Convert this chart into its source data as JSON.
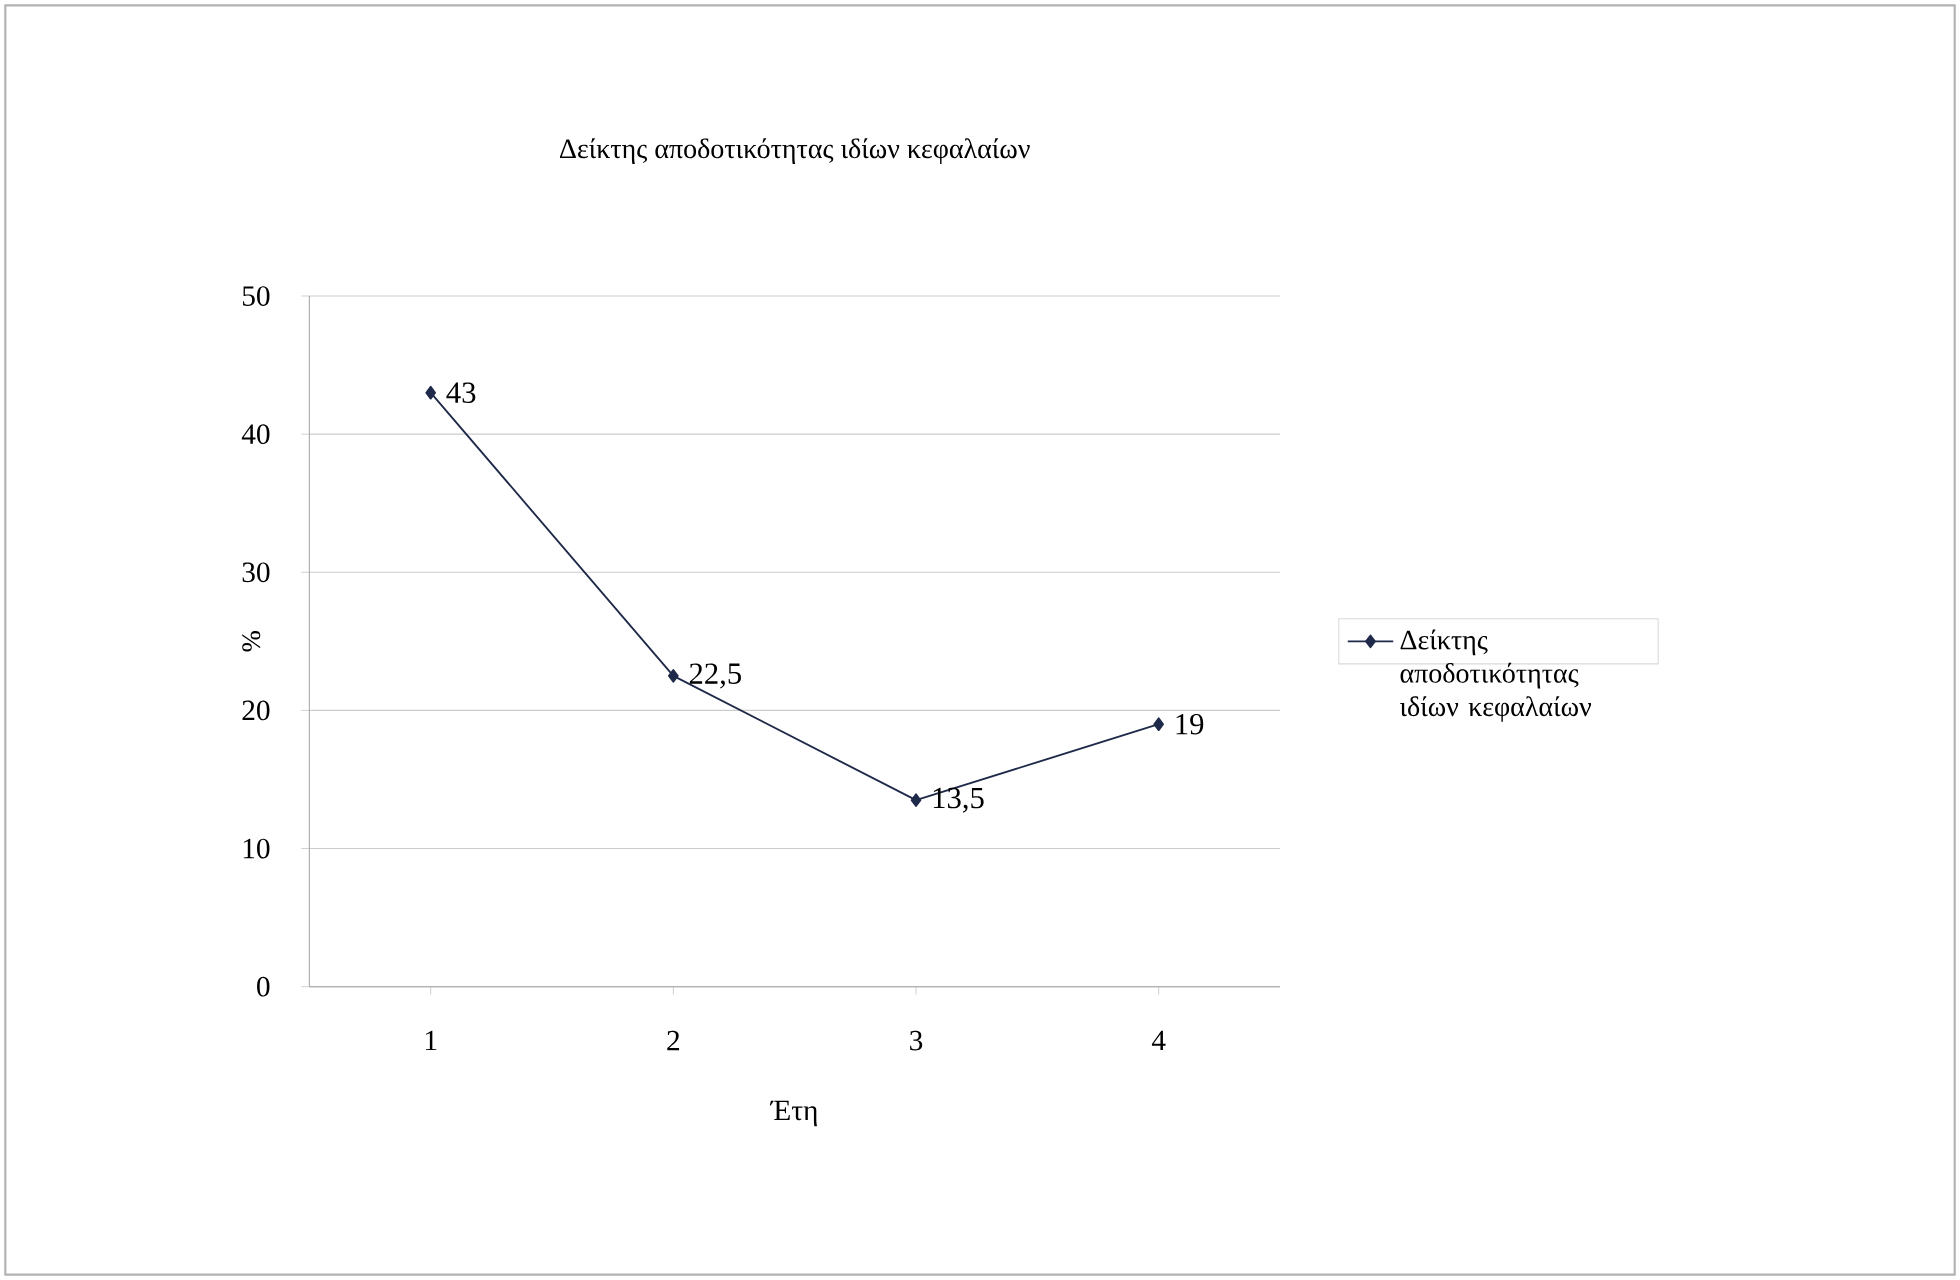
{
  "chart_data": {
    "type": "line",
    "title": "Δείκτης αποδοτικότητας ιδίων κεφαλαίων",
    "xlabel": "Έτη",
    "ylabel": "%",
    "categories": [
      "1",
      "2",
      "3",
      "4"
    ],
    "series": [
      {
        "name": "Δείκτης αποδοτικότητας ιδίων κεφαλαίων",
        "color": "#1f2a4a",
        "values": [
          43,
          22.5,
          13.5,
          19
        ],
        "value_labels": [
          "43",
          "22,5",
          "13,5",
          "19"
        ]
      }
    ],
    "ylim": [
      0,
      50
    ],
    "yticks": [
      0,
      10,
      20,
      30,
      40,
      50
    ],
    "grid": "y",
    "legend": "right",
    "marker": "diamond",
    "line_style": "solid"
  }
}
